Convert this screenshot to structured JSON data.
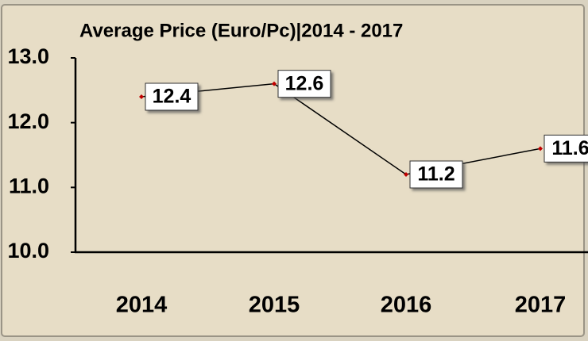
{
  "chart_data": {
    "type": "line",
    "title": "Average Price (Euro/Pc)|2014 - 2017",
    "categories": [
      "2014",
      "2015",
      "2016",
      "2017"
    ],
    "series": [
      {
        "name": "Average Price",
        "color": "#000000",
        "marker_color": "#c00000",
        "values": [
          12.4,
          12.6,
          11.2,
          11.6
        ]
      }
    ],
    "ylim": [
      10,
      13
    ],
    "yticks": [
      {
        "value": 10,
        "label": "10.0"
      },
      {
        "value": 11,
        "label": "11.0"
      },
      {
        "value": 12,
        "label": "12.0"
      },
      {
        "value": 13,
        "label": "13.0"
      }
    ],
    "grid": false
  }
}
